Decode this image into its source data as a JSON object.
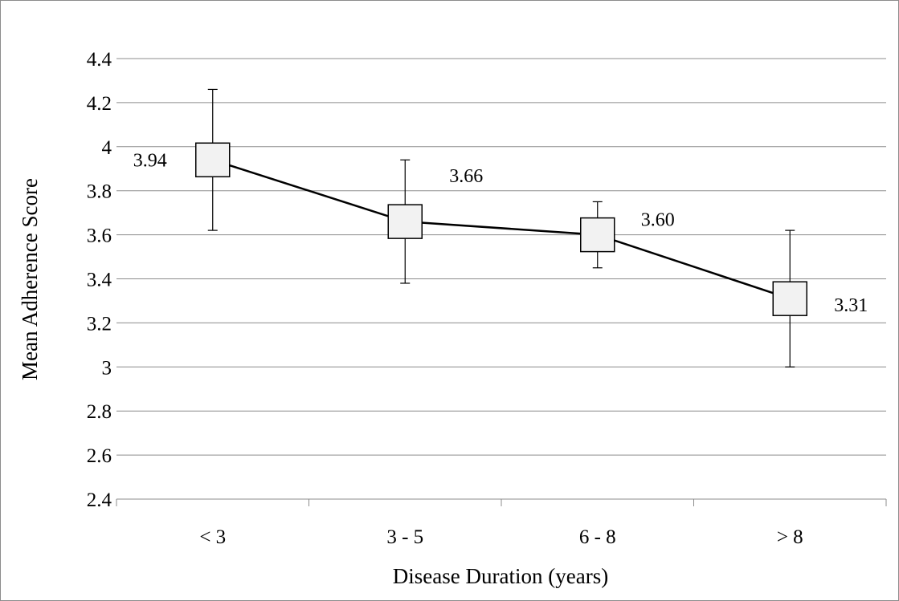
{
  "chart_data": {
    "type": "line",
    "title": "",
    "xlabel": "Disease Duration (years)",
    "ylabel": "Mean Adherence Score",
    "categories": [
      "< 3",
      "3 - 5",
      "6 - 8",
      "> 8"
    ],
    "series": [
      {
        "values": [
          3.94,
          3.66,
          3.6,
          3.31
        ],
        "error_low": [
          3.62,
          3.38,
          3.45,
          3.0
        ],
        "error_high": [
          4.26,
          3.94,
          3.75,
          3.62
        ],
        "marker": "square",
        "data_labels": [
          "3.94",
          "3.66",
          "3.60",
          "3.31"
        ]
      }
    ],
    "ylim": [
      2.4,
      4.4
    ],
    "yticks": [
      "2.4",
      "2.6",
      "2.8",
      "3",
      "3.2",
      "3.4",
      "3.6",
      "3.8",
      "4",
      "4.2",
      "4.4"
    ],
    "grid": true,
    "legend": "none",
    "colors": {
      "line": "#000000",
      "marker_fill": "#f2f2f2",
      "grid": "#8c8c8c"
    }
  }
}
